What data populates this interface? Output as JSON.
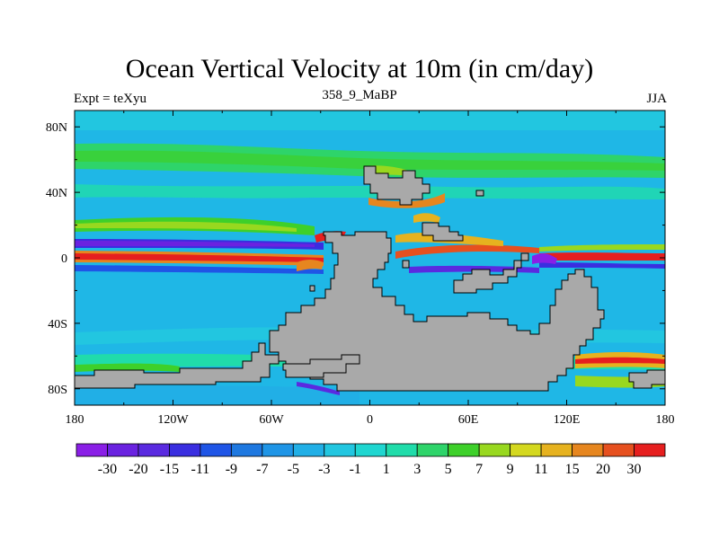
{
  "title": "Ocean Vertical Velocity at 10m (in cm/day)",
  "subtitle_left": "Expt = teXyu",
  "subtitle_center": "358_9_MaBP",
  "subtitle_right": "JJA",
  "lon_ticks": [
    "180",
    "120W",
    "60W",
    "0",
    "60E",
    "120E",
    "180"
  ],
  "lat_ticks": [
    "80N",
    "40N",
    "0",
    "40S",
    "80S"
  ],
  "colorbar": {
    "labels": [
      "-30",
      "-20",
      "-15",
      "-11",
      "-9",
      "-7",
      "-5",
      "-3",
      "-1",
      "1",
      "3",
      "5",
      "7",
      "9",
      "11",
      "15",
      "20",
      "30"
    ],
    "colors": [
      "#8a1fe6",
      "#6a22e0",
      "#5a2ae0",
      "#3a2ee0",
      "#1f55e6",
      "#1e78e0",
      "#1f95e6",
      "#21afe6",
      "#22c6e0",
      "#1fd6d0",
      "#20dcaa",
      "#2ed46a",
      "#3ed02a",
      "#98d81f",
      "#d4d81f",
      "#e6b21f",
      "#e6861f",
      "#e6501f",
      "#e61f1f"
    ]
  },
  "map": {
    "land_color": "#a9a9a9",
    "background_color": "#1fb7e6"
  }
}
